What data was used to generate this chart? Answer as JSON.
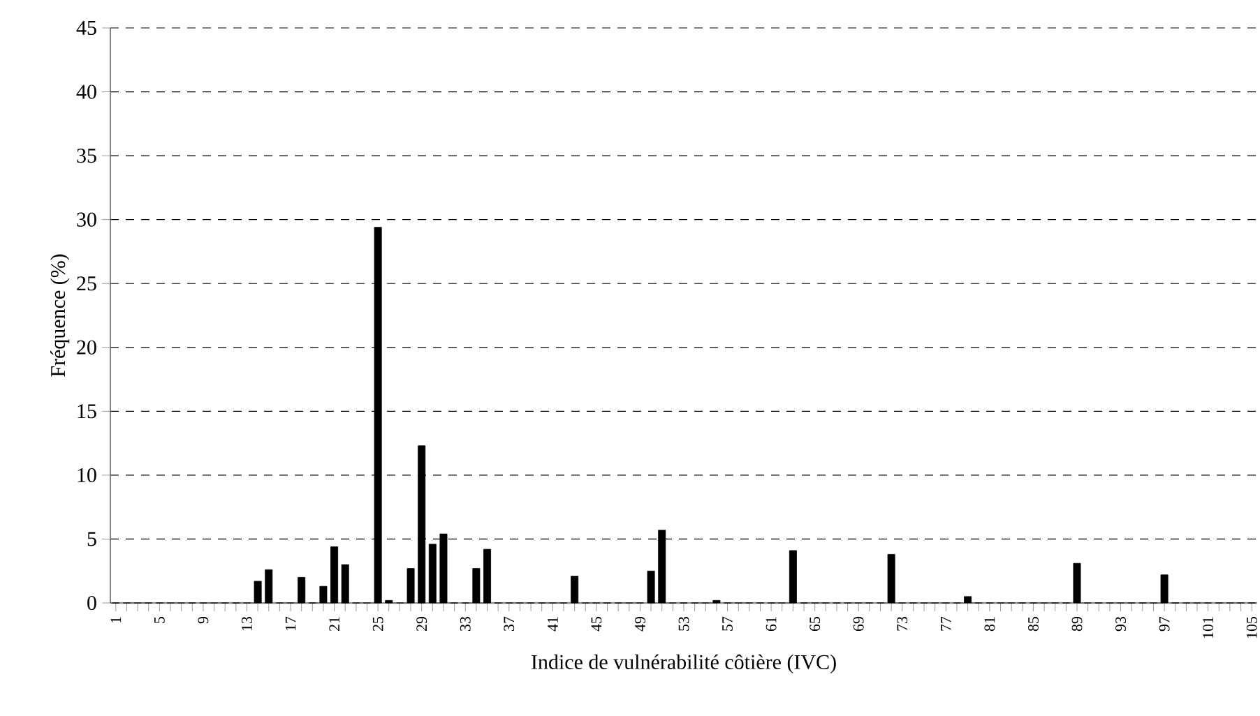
{
  "chart_data": {
    "type": "bar",
    "xlabel": "Indice de vulnérabilité côtière (IVC)",
    "ylabel": "Fréquence (%)",
    "categories": [
      "1",
      null,
      null,
      null,
      "5",
      null,
      null,
      null,
      "9",
      null,
      null,
      null,
      "13",
      null,
      null,
      null,
      "17",
      null,
      null,
      null,
      "21",
      null,
      null,
      null,
      "25",
      null,
      null,
      null,
      "29",
      null,
      null,
      null,
      "33",
      null,
      null,
      null,
      "37",
      null,
      null,
      null,
      "41",
      null,
      null,
      null,
      "45",
      null,
      null,
      null,
      "49",
      null,
      null,
      null,
      "53",
      null,
      null,
      null,
      "57",
      null,
      null,
      null,
      "61",
      null,
      null,
      null,
      "65",
      null,
      null,
      null,
      "69",
      null,
      null,
      null,
      "73",
      null,
      null,
      null,
      "77",
      null,
      null,
      null,
      "81",
      null,
      null,
      null,
      "85",
      null,
      null,
      null,
      "89",
      null,
      null,
      null,
      "93",
      null,
      null,
      null,
      "97",
      null,
      null,
      null,
      "101",
      null,
      null,
      null,
      "105"
    ],
    "values": [
      0,
      0,
      0,
      0,
      0,
      0,
      0,
      0,
      0,
      0,
      0,
      0,
      0,
      1.7,
      2.6,
      0,
      0,
      2.0,
      0,
      1.3,
      4.4,
      3.0,
      0,
      0,
      29.4,
      0.2,
      0,
      2.7,
      12.3,
      4.6,
      5.4,
      0,
      0,
      2.7,
      4.2,
      0,
      0,
      0,
      0,
      0,
      0,
      0,
      2.1,
      0,
      0,
      0,
      0,
      0,
      0,
      2.5,
      5.7,
      0,
      0,
      0,
      0,
      0.2,
      0,
      0,
      0,
      0,
      0,
      0,
      4.1,
      0,
      0,
      0,
      0,
      0,
      0,
      0,
      0,
      3.8,
      0,
      0,
      0,
      0,
      0,
      0,
      0.5,
      0,
      0,
      0,
      0,
      0,
      0,
      0,
      0,
      0,
      3.1,
      0,
      0,
      0,
      0,
      0,
      0,
      0,
      2.2,
      0,
      0,
      0,
      0,
      0,
      0,
      0,
      0
    ],
    "color": "#000000",
    "ylim": [
      0,
      45
    ],
    "yticks": [
      0,
      5,
      10,
      15,
      20,
      25,
      30,
      35,
      40,
      45
    ],
    "grid": "y"
  }
}
